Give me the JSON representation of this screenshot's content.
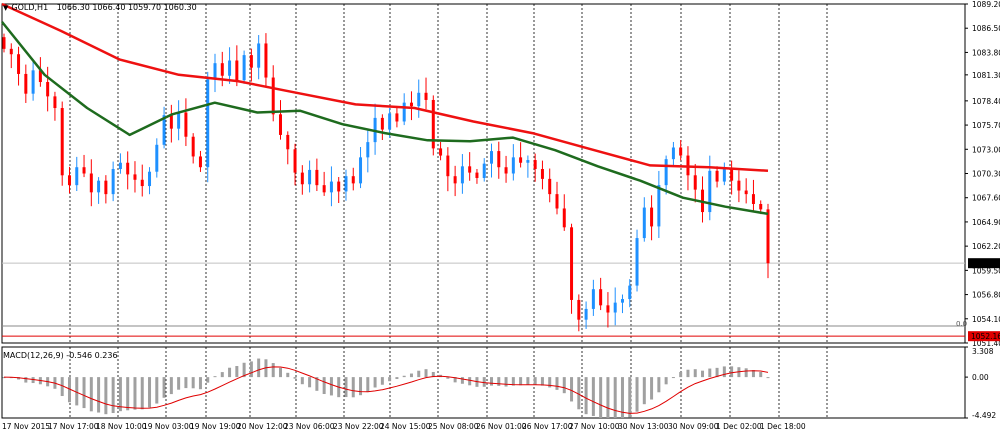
{
  "window": {
    "symbol_line": "GOLD,H1",
    "ohlc": "1066.30 1066.40 1059.70 1060.30",
    "macd_label": "MACD(12,26,9) -0.546 0.236",
    "fib_level": "0.0"
  },
  "colors": {
    "background": "#ffffff",
    "bull_candle": "#1e90ff",
    "bear_candle": "#ff0000",
    "ma_slow": "#ee1111",
    "ma_fast": "#1e6b1e",
    "macd_hist": "#a0a0a0",
    "macd_signal": "#e00000",
    "grid": "#000000",
    "bid_label_bg": "#000000",
    "level_label_bg": "#e00000"
  },
  "price_axis": {
    "ticks": [
      "1089.20",
      "1086.50",
      "1083.80",
      "1081.30",
      "1078.40",
      "1075.70",
      "1073.00",
      "1070.30",
      "1067.60",
      "1064.90",
      "1062.20",
      "1059.50",
      "1056.80",
      "1054.10",
      "1051.40"
    ],
    "ymax": 1089.2,
    "ymin": 1051.4,
    "current_price_label": "1060.30",
    "current_price": 1060.3,
    "red_level_label": "1052.16",
    "red_level": 1052.16,
    "grey_level": 1053.3
  },
  "macd_axis": {
    "ticks": [
      "3.308",
      "0.00",
      "-4.492"
    ],
    "max": 3.308,
    "min": -4.492
  },
  "time_axis": {
    "labels": [
      "17 Nov 2015",
      "17 Nov 17:00",
      "18 Nov 10:00",
      "19 Nov 03:00",
      "19 Nov 19:00",
      "20 Nov 12:00",
      "23 Nov 06:00",
      "23 Nov 22:00",
      "24 Nov 15:00",
      "25 Nov 08:00",
      "26 Nov 01:00",
      "26 Nov 17:00",
      "27 Nov 10:00",
      "30 Nov 13:00",
      "30 Nov 09:00",
      "1 Dec 02:00",
      "1 Dec 18:00",
      "2 Dec 11:00"
    ]
  },
  "chart_data": {
    "type": "candlestick",
    "symbol": "GOLD",
    "timeframe": "H1",
    "price_range": [
      1051.4,
      1089.2
    ],
    "grid": "vertical dotted",
    "closes": [
      1084.2,
      1083.6,
      1081.4,
      1079.2,
      1081.8,
      1080.5,
      1078.9,
      1077.6,
      1070.1,
      1069.0,
      1071.0,
      1070.3,
      1068.2,
      1069.5,
      1068.0,
      1070.8,
      1071.5,
      1070.2,
      1069.6,
      1068.9,
      1070.5,
      1073.5,
      1076.8,
      1075.3,
      1077.1,
      1074.4,
      1072.2,
      1071.0,
      1080.8,
      1082.6,
      1081.2,
      1082.9,
      1080.7,
      1083.5,
      1082.1,
      1084.8,
      1081.0,
      1076.9,
      1074.6,
      1073.0,
      1070.4,
      1069.1,
      1070.7,
      1069.0,
      1068.2,
      1069.4,
      1068.3,
      1070.0,
      1069.2,
      1072.1,
      1073.8,
      1076.5,
      1075.2,
      1077.0,
      1076.1,
      1078.2,
      1077.8,
      1079.3,
      1078.5,
      1073.1,
      1072.3,
      1070.0,
      1069.2,
      1071.1,
      1070.4,
      1069.8,
      1071.4,
      1072.8,
      1071.0,
      1070.3,
      1072.1,
      1071.5,
      1071.8,
      1070.8,
      1069.7,
      1068.0,
      1066.4,
      1064.3,
      1056.2,
      1054.0,
      1055.2,
      1057.4,
      1055.6,
      1054.8,
      1055.9,
      1056.3,
      1057.8,
      1063.1,
      1066.5,
      1064.4,
      1069.0,
      1071.9,
      1073.2,
      1072.3,
      1070.1,
      1068.5,
      1066.0,
      1070.6,
      1069.4,
      1070.8,
      1069.5,
      1068.4,
      1068.0,
      1066.9,
      1066.3,
      1060.3
    ],
    "ma_fast": [
      1087.2,
      1081.3,
      1077.6,
      1074.6,
      1076.9,
      1078.2,
      1077.1,
      1077.3,
      1075.8,
      1074.8,
      1074.0,
      1073.9,
      1074.3,
      1072.9,
      1071.1,
      1069.5,
      1067.6,
      1066.6,
      1065.8
    ],
    "ma_slow": [
      1089.2,
      1086.2,
      1083.0,
      1081.3,
      1080.6,
      1079.3,
      1078.0,
      1077.6,
      1076.1,
      1074.8,
      1073.0,
      1071.2,
      1071.0,
      1070.6
    ],
    "macd_range": [
      -4.492,
      3.308
    ]
  }
}
